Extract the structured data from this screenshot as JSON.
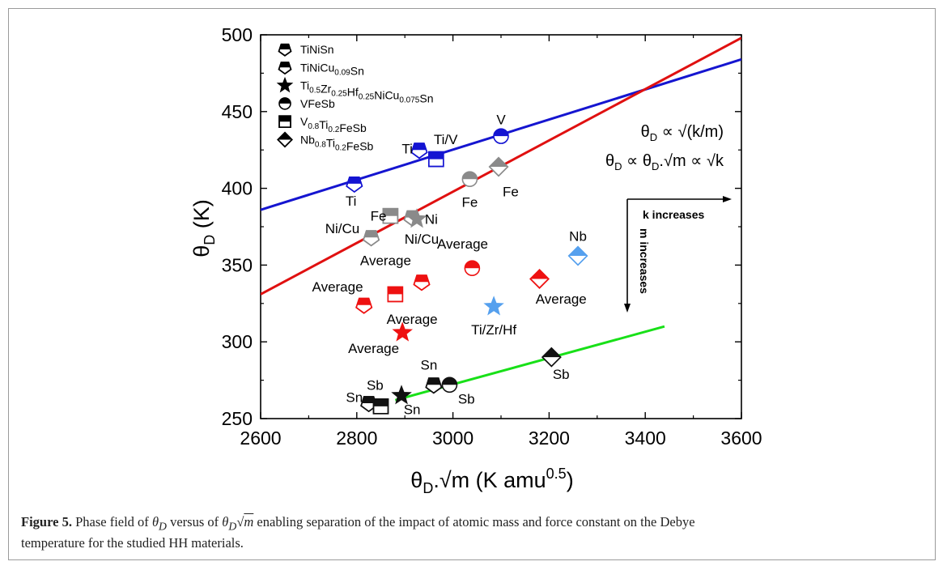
{
  "chart_data": {
    "type": "scatter",
    "xlabel": "θD.√m (K amu0.5)",
    "ylabel": "θD (K)",
    "xlim": [
      2600,
      3600
    ],
    "ylim": [
      250,
      500
    ],
    "xticks": [
      2600,
      2800,
      3000,
      3200,
      3400,
      3600
    ],
    "yticks": [
      250,
      300,
      350,
      400,
      450,
      500
    ],
    "grid": false,
    "legend_position": "top-left",
    "legend": [
      {
        "marker": "pentagon",
        "label": "TiNiSn"
      },
      {
        "marker": "pentagon-top",
        "label": "TiNiCu0.09Sn"
      },
      {
        "marker": "star",
        "label": "Ti0.5Zr0.25Hf0.25NiCu0.075Sn"
      },
      {
        "marker": "circle",
        "label": "VFeSb"
      },
      {
        "marker": "square",
        "label": "V0.8Ti0.2FeSb"
      },
      {
        "marker": "diamond",
        "label": "Nb0.8Ti0.2FeSb"
      }
    ],
    "fit_lines": [
      {
        "color": "#1515d0",
        "x": [
          2600,
          3600
        ],
        "y": [
          386,
          484
        ]
      },
      {
        "color": "#e01010",
        "x": [
          2600,
          3600
        ],
        "y": [
          331,
          498
        ]
      },
      {
        "color": "#18e018",
        "x": [
          2880,
          3440
        ],
        "y": [
          262,
          310
        ]
      }
    ],
    "points": [
      {
        "marker": "pentagon",
        "color": "#1414d2",
        "x": 2795,
        "y": 403,
        "label": "Ti",
        "lx": 2788,
        "ly": 392
      },
      {
        "marker": "pentagon",
        "color": "#1414d2",
        "x": 2930,
        "y": 425,
        "label": "Ti",
        "lx": 2905,
        "ly": 426
      },
      {
        "marker": "square",
        "color": "#1414d2",
        "x": 2965,
        "y": 419,
        "label": "Ti/V",
        "lx": 2985,
        "ly": 432
      },
      {
        "marker": "circle",
        "color": "#1414d2",
        "x": 3100,
        "y": 434,
        "label": "V",
        "lx": 3100,
        "ly": 445
      },
      {
        "marker": "circle",
        "color": "#8a8a8a",
        "x": 3035,
        "y": 406,
        "label": "Fe",
        "lx": 3035,
        "ly": 391
      },
      {
        "marker": "diamond",
        "color": "#8a8a8a",
        "x": 3095,
        "y": 414,
        "label": "Fe",
        "lx": 3120,
        "ly": 398
      },
      {
        "marker": "square",
        "color": "#8a8a8a",
        "x": 2870,
        "y": 382,
        "label": "Fe",
        "lx": 2845,
        "ly": 382
      },
      {
        "marker": "pentagon",
        "color": "#8a8a8a",
        "x": 2830,
        "y": 368,
        "label": "Ni/Cu",
        "lx": 2770,
        "ly": 374
      },
      {
        "marker": "pentagon",
        "color": "#8a8a8a",
        "x": 2915,
        "y": 381,
        "label": "Ni/Cu",
        "lx": 2935,
        "ly": 367
      },
      {
        "marker": "star",
        "color": "#8a8a8a",
        "x": 2925,
        "y": 380,
        "label": "Ni",
        "lx": 2955,
        "ly": 380
      },
      {
        "marker": "pentagon",
        "color": "#ee1111",
        "x": 2815,
        "y": 324,
        "label": "Average",
        "lx": 2760,
        "ly": 336
      },
      {
        "marker": "square",
        "color": "#ee1111",
        "x": 2880,
        "y": 331,
        "label": "Average",
        "lx": 2915,
        "ly": 315
      },
      {
        "marker": "pentagon",
        "color": "#ee1111",
        "x": 2935,
        "y": 339,
        "label": "Average",
        "lx": 2860,
        "ly": 353
      },
      {
        "marker": "circle",
        "color": "#ee1111",
        "x": 3040,
        "y": 348,
        "label": "Average",
        "lx": 3020,
        "ly": 364
      },
      {
        "marker": "diamond",
        "color": "#ee1111",
        "x": 3180,
        "y": 341,
        "label": "Average",
        "lx": 3225,
        "ly": 328
      },
      {
        "marker": "star",
        "color": "#ee1111",
        "x": 2895,
        "y": 306,
        "label": "Average",
        "lx": 2835,
        "ly": 296
      },
      {
        "marker": "star",
        "color": "#55a0ee",
        "x": 3085,
        "y": 323,
        "label": "Ti/Zr/Hf",
        "lx": 3085,
        "ly": 308
      },
      {
        "marker": "diamond",
        "color": "#55a0ee",
        "x": 3260,
        "y": 356,
        "label": "Nb",
        "lx": 3260,
        "ly": 369
      },
      {
        "marker": "pentagon",
        "color": "#111111",
        "x": 2825,
        "y": 260,
        "label": "Sn",
        "lx": 2795,
        "ly": 264
      },
      {
        "marker": "square",
        "color": "#111111",
        "x": 2850,
        "y": 258,
        "label": "Sb",
        "lx": 2838,
        "ly": 272
      },
      {
        "marker": "star",
        "color": "#111111",
        "x": 2893,
        "y": 265,
        "label": "Sn",
        "lx": 2915,
        "ly": 256
      },
      {
        "marker": "pentagon",
        "color": "#111111",
        "x": 2960,
        "y": 272,
        "label": "Sn",
        "lx": 2950,
        "ly": 285
      },
      {
        "marker": "circle",
        "color": "#111111",
        "x": 2993,
        "y": 272,
        "label": "Sb",
        "lx": 3028,
        "ly": 263
      },
      {
        "marker": "diamond",
        "color": "#111111",
        "x": 3205,
        "y": 290,
        "label": "Sb",
        "lx": 3225,
        "ly": 279
      }
    ],
    "annotations": [
      {
        "key": "eq1",
        "text": "θD ∝ √(k/m)"
      },
      {
        "key": "eq2",
        "text": "θD ∝ θD.√m ∝ √k"
      },
      {
        "key": "k_arrow",
        "text": "k increases"
      },
      {
        "key": "m_arrow",
        "text": "m increases"
      }
    ]
  },
  "caption": {
    "label": "Figure 5.",
    "text_1": " Phase field of ",
    "text_2": " versus of ",
    "text_3": " enabling separation of the impact of atomic mass and force constant on the Debye",
    "text_4": "temperature for the studied HH materials."
  }
}
